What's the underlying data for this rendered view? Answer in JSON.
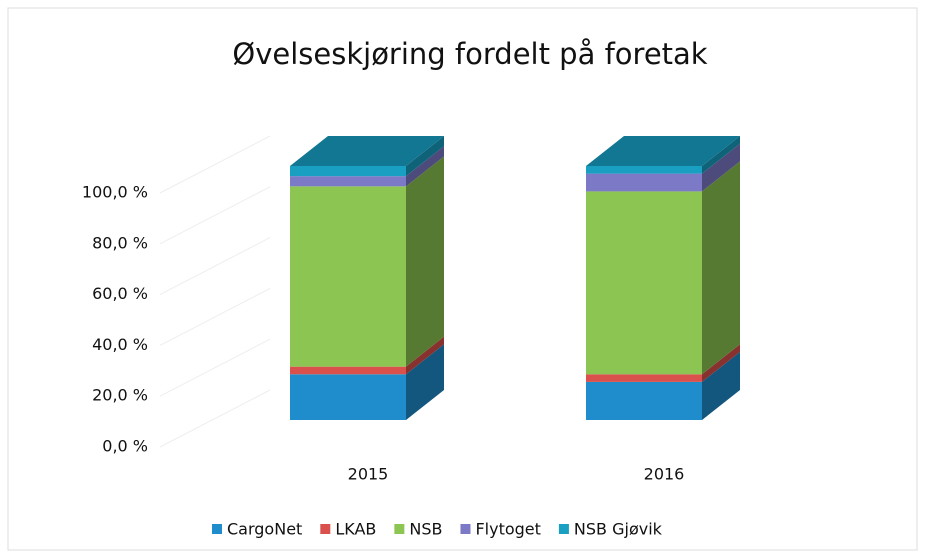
{
  "chart_data": {
    "type": "stacked_bar_3d",
    "title": "Øvelseskjøring fordelt på foretak",
    "categories": [
      "2015",
      "2016"
    ],
    "series": [
      {
        "name": "CargoNet",
        "color": "#1f8ccb",
        "values": [
          18,
          15
        ]
      },
      {
        "name": "LKAB",
        "color": "#d9504c",
        "values": [
          3,
          3
        ]
      },
      {
        "name": "NSB",
        "color": "#8dc553",
        "values": [
          71,
          72
        ]
      },
      {
        "name": "Flytoget",
        "color": "#7c79c6",
        "values": [
          4,
          7
        ]
      },
      {
        "name": "NSB Gjøvik",
        "color": "#189fc2",
        "values": [
          4,
          3
        ]
      }
    ],
    "ylim": [
      0,
      100
    ],
    "yticks": [
      {
        "value": 0,
        "label": "0,0 %"
      },
      {
        "value": 20,
        "label": "20,0 %"
      },
      {
        "value": 40,
        "label": "40,0 %"
      },
      {
        "value": 60,
        "label": "60,0 %"
      },
      {
        "value": 80,
        "label": "80,0 %"
      },
      {
        "value": 100,
        "label": "100,0 %"
      }
    ],
    "grid": true,
    "legend": "bottom"
  }
}
